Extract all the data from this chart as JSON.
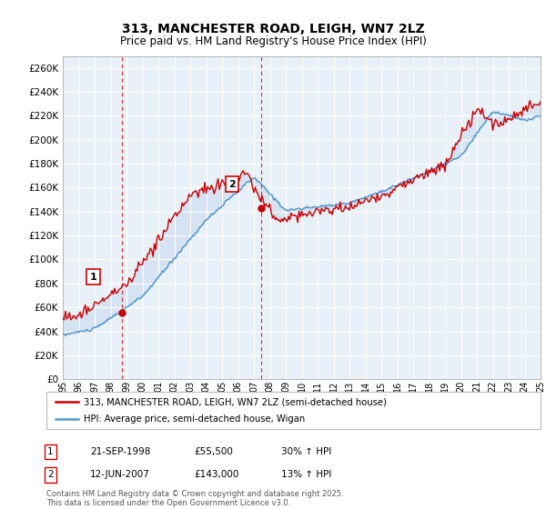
{
  "title": "313, MANCHESTER ROAD, LEIGH, WN7 2LZ",
  "subtitle": "Price paid vs. HM Land Registry's House Price Index (HPI)",
  "ylim": [
    0,
    270000
  ],
  "yticks": [
    0,
    20000,
    40000,
    60000,
    80000,
    100000,
    120000,
    140000,
    160000,
    180000,
    200000,
    220000,
    240000,
    260000
  ],
  "ytick_labels": [
    "£0",
    "£20K",
    "£40K",
    "£60K",
    "£80K",
    "£100K",
    "£120K",
    "£140K",
    "£160K",
    "£180K",
    "£200K",
    "£220K",
    "£240K",
    "£260K"
  ],
  "background_color": "#ffffff",
  "plot_bg_color": "#e8f0f8",
  "grid_color": "#ffffff",
  "line1_color": "#cc0000",
  "line2_color": "#5599cc",
  "fill_color": "#c5d8ed",
  "marker_color": "#cc0000",
  "vline_color": "#cc0000",
  "sale1_year": 1998.72,
  "sale1_price": 55500,
  "sale1_label": "1",
  "sale1_date": "21-SEP-1998",
  "sale1_price_str": "£55,500",
  "sale1_hpi": "30% ↑ HPI",
  "sale2_year": 2007.44,
  "sale2_price": 143000,
  "sale2_label": "2",
  "sale2_date": "12-JUN-2007",
  "sale2_price_str": "£143,000",
  "sale2_hpi": "13% ↑ HPI",
  "legend_line1": "313, MANCHESTER ROAD, LEIGH, WN7 2LZ (semi-detached house)",
  "legend_line2": "HPI: Average price, semi-detached house, Wigan",
  "footer": "Contains HM Land Registry data © Crown copyright and database right 2025.\nThis data is licensed under the Open Government Licence v3.0.",
  "title_fontsize": 10,
  "subtitle_fontsize": 8.5
}
